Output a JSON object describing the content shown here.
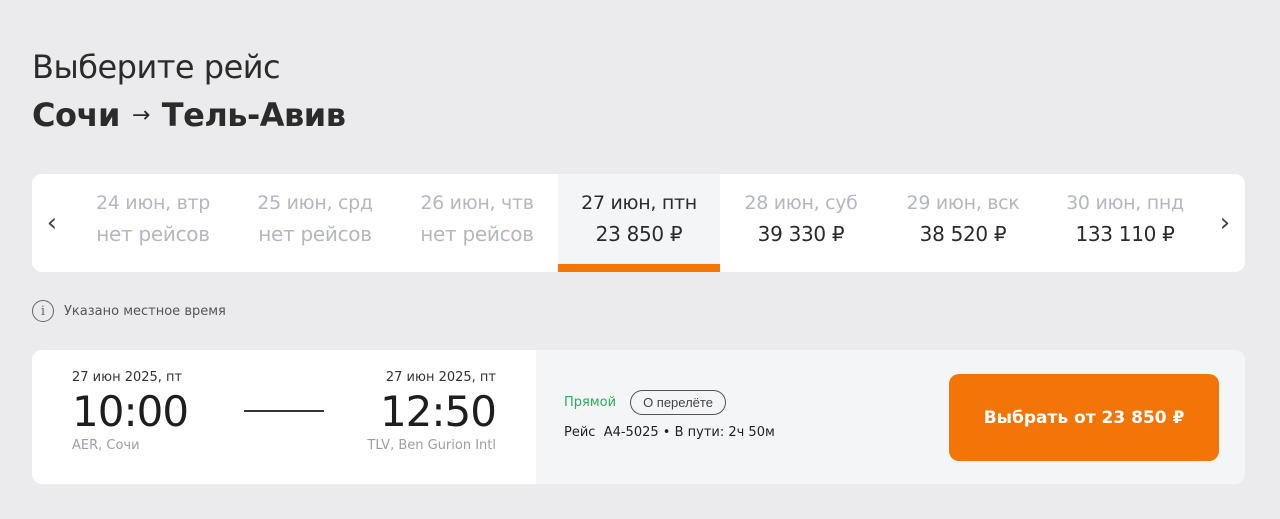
{
  "header": {
    "title": "Выберите рейс",
    "origin": "Сочи",
    "arrow": "→",
    "destination": "Тель-Авив"
  },
  "dates": [
    {
      "date": "24 июн, втр",
      "price": "нет рейсов",
      "state": "none"
    },
    {
      "date": "25 июн, срд",
      "price": "нет рейсов",
      "state": "none"
    },
    {
      "date": "26 июн, чтв",
      "price": "нет рейсов",
      "state": "none"
    },
    {
      "date": "27 июн, птн",
      "price": "23 850 ₽",
      "state": "selected"
    },
    {
      "date": "28 июн, суб",
      "price": "39 330 ₽",
      "state": "avail"
    },
    {
      "date": "29 июн, вск",
      "price": "38 520 ₽",
      "state": "avail"
    },
    {
      "date": "30 июн, пнд",
      "price": "133 110 ₽",
      "state": "avail"
    }
  ],
  "nav": {
    "prev": "‹",
    "next": "›"
  },
  "info": {
    "icon": "info-icon",
    "glyph": "i",
    "text": "Указано местное время"
  },
  "flight": {
    "departure": {
      "date": "27 июн 2025, пт",
      "time": "10:00",
      "airport": "AER, Сочи"
    },
    "arrival": {
      "date": "27 июн 2025, пт",
      "time": "12:50",
      "airport": "TLV, Ben Gurion Intl"
    },
    "type": "Прямой",
    "about": "О перелёте",
    "details": "Рейс  A4-5025 • В пути: 2ч 50м",
    "select": "Выбрать от 23 850 ₽"
  },
  "colors": {
    "accent": "#f47507",
    "direct": "#2eaa5c"
  }
}
